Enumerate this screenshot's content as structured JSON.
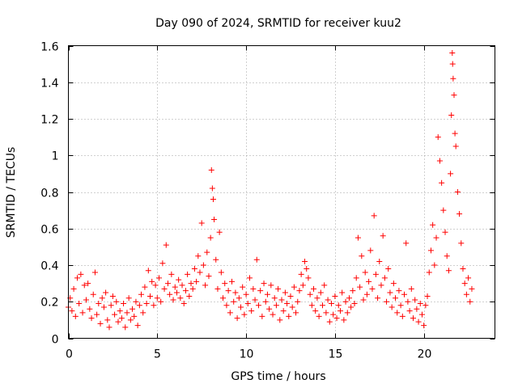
{
  "chart_data": {
    "type": "scatter",
    "title": "Day 090 of 2024, SRMTID for receiver kuu2",
    "xlabel": "GPS time / hours",
    "ylabel": "SRMTID / TECUs",
    "xlim": [
      0,
      24
    ],
    "ylim": [
      0,
      1.6
    ],
    "xticks": [
      0,
      5,
      10,
      15,
      20
    ],
    "xtick_labels": [
      "0",
      "5",
      "10",
      "15",
      "20"
    ],
    "yticks": [
      0,
      0.2,
      0.4,
      0.6,
      0.8,
      1,
      1.2,
      1.4,
      1.6
    ],
    "ytick_labels": [
      "0",
      "0.2",
      "0.4",
      "0.6",
      "0.8",
      "1",
      "1.2",
      "1.4",
      "1.6"
    ],
    "grid": true,
    "marker": "+",
    "series": [
      {
        "name": "SRMTID",
        "color": "#ff0000",
        "points": [
          [
            0.0,
            0.17
          ],
          [
            0.1,
            0.22
          ],
          [
            0.2,
            0.15
          ],
          [
            0.3,
            0.27
          ],
          [
            0.4,
            0.12
          ],
          [
            0.5,
            0.33
          ],
          [
            0.6,
            0.19
          ],
          [
            0.7,
            0.35
          ],
          [
            0.8,
            0.14
          ],
          [
            0.9,
            0.29
          ],
          [
            1.0,
            0.21
          ],
          [
            1.1,
            0.3
          ],
          [
            1.2,
            0.16
          ],
          [
            1.3,
            0.11
          ],
          [
            1.4,
            0.24
          ],
          [
            1.5,
            0.36
          ],
          [
            1.6,
            0.13
          ],
          [
            1.7,
            0.19
          ],
          [
            1.8,
            0.08
          ],
          [
            1.9,
            0.22
          ],
          [
            2.0,
            0.17
          ],
          [
            2.1,
            0.25
          ],
          [
            2.2,
            0.1
          ],
          [
            2.3,
            0.06
          ],
          [
            2.4,
            0.18
          ],
          [
            2.5,
            0.23
          ],
          [
            2.6,
            0.13
          ],
          [
            2.7,
            0.2
          ],
          [
            2.8,
            0.09
          ],
          [
            2.9,
            0.15
          ],
          [
            3.0,
            0.11
          ],
          [
            3.1,
            0.19
          ],
          [
            3.2,
            0.06
          ],
          [
            3.3,
            0.14
          ],
          [
            3.4,
            0.22
          ],
          [
            3.5,
            0.1
          ],
          [
            3.6,
            0.16
          ],
          [
            3.7,
            0.12
          ],
          [
            3.8,
            0.2
          ],
          [
            3.9,
            0.07
          ],
          [
            4.0,
            0.18
          ],
          [
            4.1,
            0.24
          ],
          [
            4.2,
            0.14
          ],
          [
            4.3,
            0.28
          ],
          [
            4.4,
            0.19
          ],
          [
            4.5,
            0.37
          ],
          [
            4.6,
            0.23
          ],
          [
            4.7,
            0.31
          ],
          [
            4.8,
            0.18
          ],
          [
            4.9,
            0.29
          ],
          [
            5.0,
            0.22
          ],
          [
            5.1,
            0.33
          ],
          [
            5.2,
            0.2
          ],
          [
            5.3,
            0.41
          ],
          [
            5.4,
            0.27
          ],
          [
            5.5,
            0.51
          ],
          [
            5.6,
            0.3
          ],
          [
            5.7,
            0.24
          ],
          [
            5.8,
            0.35
          ],
          [
            5.9,
            0.21
          ],
          [
            6.0,
            0.28
          ],
          [
            6.1,
            0.25
          ],
          [
            6.2,
            0.32
          ],
          [
            6.3,
            0.22
          ],
          [
            6.4,
            0.29
          ],
          [
            6.5,
            0.19
          ],
          [
            6.6,
            0.26
          ],
          [
            6.7,
            0.35
          ],
          [
            6.8,
            0.23
          ],
          [
            6.9,
            0.3
          ],
          [
            7.0,
            0.27
          ],
          [
            7.1,
            0.38
          ],
          [
            7.2,
            0.31
          ],
          [
            7.3,
            0.45
          ],
          [
            7.4,
            0.36
          ],
          [
            7.5,
            0.63
          ],
          [
            7.6,
            0.4
          ],
          [
            7.7,
            0.29
          ],
          [
            7.8,
            0.47
          ],
          [
            7.9,
            0.34
          ],
          [
            8.0,
            0.55
          ],
          [
            8.05,
            0.92
          ],
          [
            8.1,
            0.82
          ],
          [
            8.15,
            0.76
          ],
          [
            8.2,
            0.65
          ],
          [
            8.3,
            0.43
          ],
          [
            8.4,
            0.27
          ],
          [
            8.5,
            0.58
          ],
          [
            8.6,
            0.36
          ],
          [
            8.7,
            0.22
          ],
          [
            8.8,
            0.3
          ],
          [
            8.9,
            0.18
          ],
          [
            9.0,
            0.26
          ],
          [
            9.1,
            0.14
          ],
          [
            9.2,
            0.31
          ],
          [
            9.3,
            0.2
          ],
          [
            9.4,
            0.25
          ],
          [
            9.5,
            0.11
          ],
          [
            9.6,
            0.22
          ],
          [
            9.7,
            0.17
          ],
          [
            9.8,
            0.28
          ],
          [
            9.9,
            0.13
          ],
          [
            10.0,
            0.24
          ],
          [
            10.1,
            0.19
          ],
          [
            10.2,
            0.33
          ],
          [
            10.3,
            0.15
          ],
          [
            10.4,
            0.27
          ],
          [
            10.5,
            0.21
          ],
          [
            10.6,
            0.43
          ],
          [
            10.7,
            0.18
          ],
          [
            10.8,
            0.26
          ],
          [
            10.9,
            0.12
          ],
          [
            11.0,
            0.3
          ],
          [
            11.1,
            0.2
          ],
          [
            11.2,
            0.24
          ],
          [
            11.3,
            0.16
          ],
          [
            11.4,
            0.29
          ],
          [
            11.5,
            0.13
          ],
          [
            11.6,
            0.22
          ],
          [
            11.7,
            0.18
          ],
          [
            11.8,
            0.27
          ],
          [
            11.9,
            0.1
          ],
          [
            12.0,
            0.21
          ],
          [
            12.1,
            0.15
          ],
          [
            12.2,
            0.25
          ],
          [
            12.3,
            0.19
          ],
          [
            12.4,
            0.12
          ],
          [
            12.5,
            0.23
          ],
          [
            12.6,
            0.17
          ],
          [
            12.7,
            0.28
          ],
          [
            12.8,
            0.14
          ],
          [
            12.9,
            0.2
          ],
          [
            13.0,
            0.26
          ],
          [
            13.1,
            0.35
          ],
          [
            13.2,
            0.29
          ],
          [
            13.3,
            0.42
          ],
          [
            13.4,
            0.38
          ],
          [
            13.5,
            0.33
          ],
          [
            13.6,
            0.24
          ],
          [
            13.7,
            0.18
          ],
          [
            13.8,
            0.27
          ],
          [
            13.9,
            0.15
          ],
          [
            14.0,
            0.22
          ],
          [
            14.1,
            0.12
          ],
          [
            14.2,
            0.25
          ],
          [
            14.3,
            0.18
          ],
          [
            14.4,
            0.29
          ],
          [
            14.5,
            0.14
          ],
          [
            14.6,
            0.21
          ],
          [
            14.7,
            0.09
          ],
          [
            14.8,
            0.19
          ],
          [
            14.9,
            0.13
          ],
          [
            15.0,
            0.23
          ],
          [
            15.1,
            0.11
          ],
          [
            15.2,
            0.18
          ],
          [
            15.3,
            0.15
          ],
          [
            15.4,
            0.25
          ],
          [
            15.5,
            0.1
          ],
          [
            15.6,
            0.2
          ],
          [
            15.7,
            0.14
          ],
          [
            15.8,
            0.22
          ],
          [
            15.9,
            0.17
          ],
          [
            16.0,
            0.26
          ],
          [
            16.1,
            0.19
          ],
          [
            16.2,
            0.33
          ],
          [
            16.3,
            0.55
          ],
          [
            16.4,
            0.28
          ],
          [
            16.5,
            0.45
          ],
          [
            16.6,
            0.21
          ],
          [
            16.7,
            0.36
          ],
          [
            16.8,
            0.24
          ],
          [
            16.9,
            0.31
          ],
          [
            17.0,
            0.48
          ],
          [
            17.1,
            0.27
          ],
          [
            17.2,
            0.67
          ],
          [
            17.3,
            0.35
          ],
          [
            17.4,
            0.22
          ],
          [
            17.5,
            0.42
          ],
          [
            17.6,
            0.29
          ],
          [
            17.7,
            0.56
          ],
          [
            17.8,
            0.33
          ],
          [
            17.9,
            0.2
          ],
          [
            18.0,
            0.38
          ],
          [
            18.1,
            0.25
          ],
          [
            18.2,
            0.17
          ],
          [
            18.3,
            0.3
          ],
          [
            18.4,
            0.22
          ],
          [
            18.5,
            0.14
          ],
          [
            18.6,
            0.26
          ],
          [
            18.7,
            0.18
          ],
          [
            18.8,
            0.12
          ],
          [
            18.9,
            0.24
          ],
          [
            19.0,
            0.52
          ],
          [
            19.1,
            0.2
          ],
          [
            19.2,
            0.15
          ],
          [
            19.3,
            0.27
          ],
          [
            19.4,
            0.11
          ],
          [
            19.5,
            0.21
          ],
          [
            19.6,
            0.16
          ],
          [
            19.7,
            0.09
          ],
          [
            19.8,
            0.19
          ],
          [
            19.9,
            0.13
          ],
          [
            20.0,
            0.07
          ],
          [
            20.1,
            0.18
          ],
          [
            20.2,
            0.23
          ],
          [
            20.3,
            0.36
          ],
          [
            20.4,
            0.48
          ],
          [
            20.5,
            0.62
          ],
          [
            20.6,
            0.4
          ],
          [
            20.7,
            0.55
          ],
          [
            20.8,
            1.1
          ],
          [
            20.9,
            0.97
          ],
          [
            21.0,
            0.85
          ],
          [
            21.1,
            0.7
          ],
          [
            21.2,
            0.58
          ],
          [
            21.3,
            0.45
          ],
          [
            21.4,
            0.37
          ],
          [
            21.5,
            0.9
          ],
          [
            21.55,
            1.22
          ],
          [
            21.6,
            1.56
          ],
          [
            21.62,
            1.5
          ],
          [
            21.65,
            1.42
          ],
          [
            21.7,
            1.33
          ],
          [
            21.75,
            1.12
          ],
          [
            21.8,
            1.05
          ],
          [
            21.9,
            0.8
          ],
          [
            22.0,
            0.68
          ],
          [
            22.1,
            0.52
          ],
          [
            22.2,
            0.38
          ],
          [
            22.3,
            0.3
          ],
          [
            22.4,
            0.24
          ],
          [
            22.5,
            0.33
          ],
          [
            22.6,
            0.2
          ],
          [
            22.7,
            0.27
          ]
        ]
      }
    ]
  }
}
